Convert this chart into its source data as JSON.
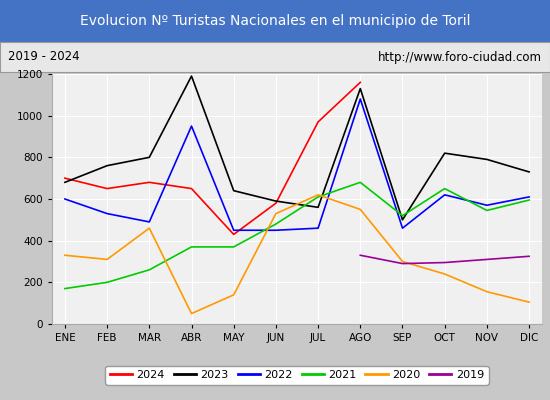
{
  "title": "Evolucion Nº Turistas Nacionales en el municipio de Toril",
  "subtitle_left": "2019 - 2024",
  "subtitle_right": "http://www.foro-ciudad.com",
  "title_bg_color": "#4472c4",
  "title_text_color": "#ffffff",
  "subtitle_bg_color": "#e8e8e8",
  "plot_bg_color": "#f0f0f0",
  "months": [
    "ENE",
    "FEB",
    "MAR",
    "ABR",
    "MAY",
    "JUN",
    "JUL",
    "AGO",
    "SEP",
    "OCT",
    "NOV",
    "DIC"
  ],
  "ylim": [
    0,
    1200
  ],
  "yticks": [
    0,
    200,
    400,
    600,
    800,
    1000,
    1200
  ],
  "series": {
    "2024": {
      "color": "#ff0000",
      "values": [
        700,
        650,
        680,
        650,
        430,
        580,
        970,
        1160,
        null,
        null,
        null,
        null
      ]
    },
    "2023": {
      "color": "#000000",
      "values": [
        680,
        760,
        800,
        1190,
        640,
        590,
        560,
        1130,
        500,
        820,
        790,
        730
      ]
    },
    "2022": {
      "color": "#0000ff",
      "values": [
        600,
        530,
        490,
        950,
        450,
        450,
        460,
        1080,
        460,
        620,
        570,
        610
      ]
    },
    "2021": {
      "color": "#00cc00",
      "values": [
        170,
        200,
        260,
        370,
        370,
        480,
        610,
        680,
        520,
        650,
        545,
        595
      ]
    },
    "2020": {
      "color": "#ff9900",
      "values": [
        330,
        310,
        460,
        50,
        140,
        530,
        620,
        550,
        300,
        240,
        155,
        105
      ]
    },
    "2019": {
      "color": "#990099",
      "values": [
        null,
        null,
        null,
        null,
        null,
        null,
        null,
        330,
        290,
        295,
        310,
        325
      ]
    }
  },
  "legend_order": [
    "2024",
    "2023",
    "2022",
    "2021",
    "2020",
    "2019"
  ]
}
